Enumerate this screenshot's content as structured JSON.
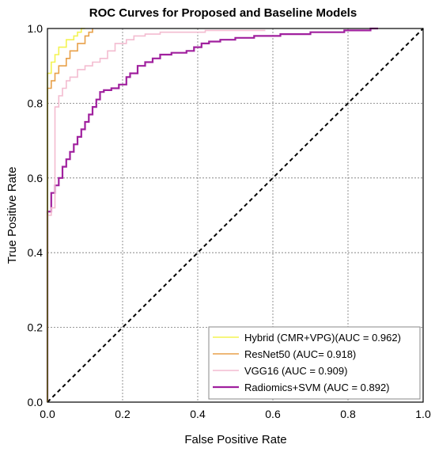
{
  "chart_data": {
    "type": "line",
    "title": "ROC Curves for Proposed and Baseline Models",
    "xlabel": "False Positive Rate",
    "ylabel": "True Positive Rate",
    "xlim": [
      0,
      1
    ],
    "ylim": [
      0,
      1
    ],
    "xticks": [
      "0.0",
      "0.2",
      "0.4",
      "0.6",
      "0.8",
      "1.0"
    ],
    "yticks": [
      "0.0",
      "0.2",
      "0.4",
      "0.6",
      "0.8",
      "1.0"
    ],
    "grid": true,
    "legend_position": "bottom-right",
    "diagonal_reference": {
      "x": [
        0,
        1
      ],
      "y": [
        0,
        1
      ],
      "style": "dashed",
      "color": "#000000"
    },
    "series": [
      {
        "name": "Hybrid (CMR+VPG)(AUC = 0.962)",
        "color": "#f3f352",
        "x": [
          0,
          0.0,
          0.01,
          0.01,
          0.02,
          0.02,
          0.03,
          0.03,
          0.05,
          0.05,
          0.07,
          0.07,
          0.08,
          0.08,
          0.09,
          0.09,
          0.1
        ],
        "y": [
          0,
          0.88,
          0.88,
          0.91,
          0.91,
          0.93,
          0.93,
          0.95,
          0.95,
          0.97,
          0.97,
          0.98,
          0.98,
          0.99,
          0.99,
          1.0,
          1.0
        ]
      },
      {
        "name": "ResNet50 (AUC= 0.918)",
        "color": "#e8a14a",
        "x": [
          0,
          0.0,
          0.01,
          0.01,
          0.02,
          0.02,
          0.03,
          0.03,
          0.05,
          0.05,
          0.06,
          0.06,
          0.08,
          0.08,
          0.1,
          0.1,
          0.11,
          0.11,
          0.12,
          0.12
        ],
        "y": [
          0,
          0.84,
          0.84,
          0.86,
          0.86,
          0.88,
          0.88,
          0.9,
          0.9,
          0.92,
          0.92,
          0.94,
          0.94,
          0.96,
          0.96,
          0.98,
          0.98,
          0.99,
          0.99,
          1.0
        ]
      },
      {
        "name": "VGG16 (AUC = 0.909)",
        "color": "#f3bcd0",
        "x": [
          0,
          0.0,
          0.01,
          0.01,
          0.02,
          0.02,
          0.03,
          0.03,
          0.04,
          0.04,
          0.05,
          0.05,
          0.06,
          0.06,
          0.08,
          0.08,
          0.1,
          0.1,
          0.12,
          0.12,
          0.14,
          0.14,
          0.16,
          0.16,
          0.18,
          0.18,
          0.21,
          0.21,
          0.23,
          0.23,
          0.26,
          0.26,
          0.3,
          0.3,
          0.42,
          0.42,
          0.58
        ],
        "y": [
          0,
          0.5,
          0.5,
          0.52,
          0.52,
          0.79,
          0.79,
          0.82,
          0.82,
          0.84,
          0.84,
          0.86,
          0.86,
          0.87,
          0.87,
          0.89,
          0.89,
          0.9,
          0.9,
          0.91,
          0.91,
          0.92,
          0.92,
          0.94,
          0.94,
          0.96,
          0.96,
          0.97,
          0.97,
          0.98,
          0.98,
          0.985,
          0.985,
          0.99,
          0.99,
          0.995,
          0.995
        ]
      },
      {
        "name": "Radiomics+SVM (AUC = 0.892)",
        "color": "#a0209e",
        "x": [
          0,
          0.0,
          0.01,
          0.01,
          0.02,
          0.02,
          0.03,
          0.03,
          0.04,
          0.04,
          0.05,
          0.05,
          0.06,
          0.06,
          0.07,
          0.07,
          0.08,
          0.08,
          0.09,
          0.09,
          0.1,
          0.1,
          0.11,
          0.11,
          0.12,
          0.12,
          0.13,
          0.13,
          0.14,
          0.14,
          0.15,
          0.15,
          0.17,
          0.17,
          0.19,
          0.19,
          0.21,
          0.21,
          0.22,
          0.22,
          0.24,
          0.24,
          0.26,
          0.26,
          0.28,
          0.28,
          0.3,
          0.3,
          0.33,
          0.33,
          0.37,
          0.37,
          0.39,
          0.39,
          0.41,
          0.41,
          0.43,
          0.43,
          0.46,
          0.46,
          0.5,
          0.5,
          0.55,
          0.55,
          0.62,
          0.62,
          0.7,
          0.7,
          0.79,
          0.79,
          0.86,
          0.86,
          0.88
        ],
        "y": [
          0,
          0.51,
          0.51,
          0.56,
          0.56,
          0.58,
          0.58,
          0.6,
          0.6,
          0.63,
          0.63,
          0.65,
          0.65,
          0.67,
          0.67,
          0.69,
          0.69,
          0.71,
          0.71,
          0.73,
          0.73,
          0.75,
          0.75,
          0.77,
          0.77,
          0.79,
          0.79,
          0.81,
          0.81,
          0.83,
          0.83,
          0.835,
          0.835,
          0.84,
          0.84,
          0.85,
          0.85,
          0.87,
          0.87,
          0.88,
          0.88,
          0.9,
          0.9,
          0.91,
          0.91,
          0.92,
          0.92,
          0.93,
          0.93,
          0.935,
          0.935,
          0.94,
          0.94,
          0.95,
          0.95,
          0.96,
          0.96,
          0.965,
          0.965,
          0.97,
          0.97,
          0.975,
          0.975,
          0.98,
          0.98,
          0.985,
          0.985,
          0.99,
          0.99,
          0.995,
          0.995,
          1.0,
          1.0
        ]
      }
    ]
  }
}
